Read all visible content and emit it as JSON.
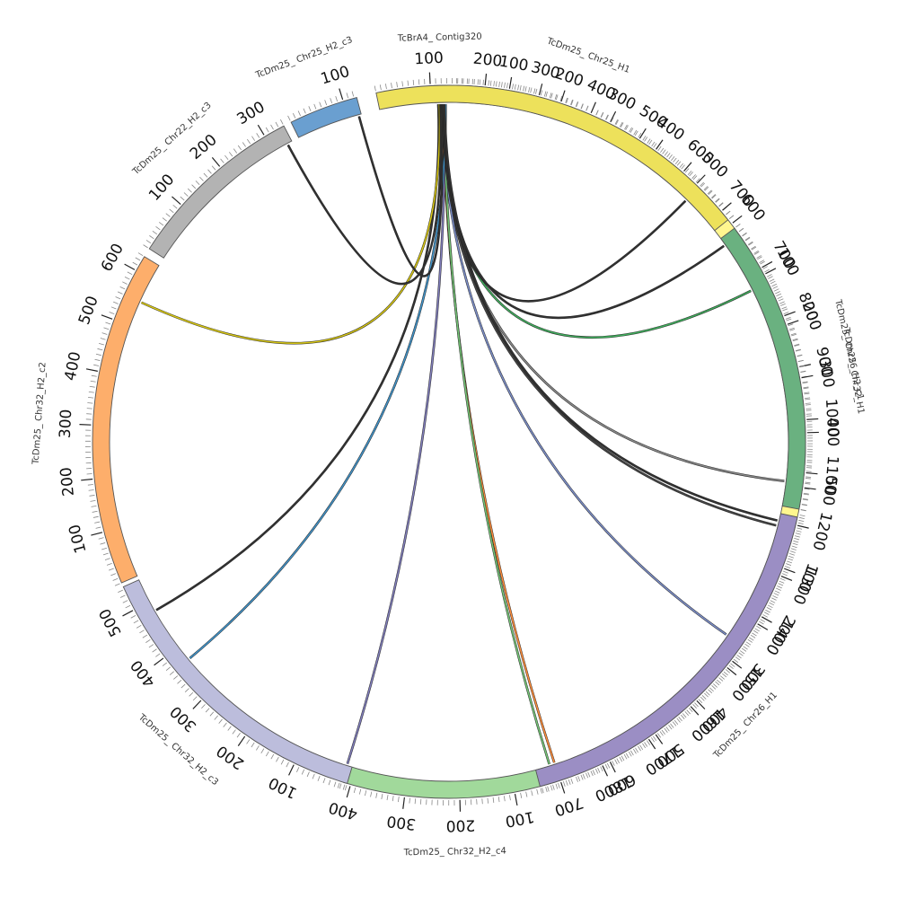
{
  "chart_data": {
    "type": "chord",
    "title": "",
    "segments": [
      {
        "name": "TcBrA4_ Contig320",
        "length": 15,
        "color": "#9ecae1",
        "start_deg": 357.6,
        "end_deg": 359.8
      },
      {
        "name": "TcDm25_ Chr32_H1",
        "length": 1850,
        "color": "#fff68f",
        "start_deg": 1.2,
        "end_deg": 158.9
      },
      {
        "name": "TcDm25_ Chr32_H2_c4",
        "length": 420,
        "color": "#a1d99b",
        "start_deg": 160.5,
        "end_deg": 197.8
      },
      {
        "name": "TcDm25_ Chr32_H2_c3",
        "length": 545,
        "color": "#bcbddc",
        "start_deg": 196.6,
        "end_deg": 246.0
      },
      {
        "name": "TcDm25_ Chr32_H2_c2",
        "length": 630,
        "color": "#fdae6b",
        "start_deg": 246.7,
        "end_deg": 301.3
      },
      {
        "name": "TcDm25_ Chr22_H2_c3",
        "length": 340,
        "color": "#b3b3b3",
        "start_deg": 302.8,
        "end_deg": 332.4
      },
      {
        "name": "TcDm25_ Chr25_H2_c3",
        "length": 125,
        "color": "#6a9fd0",
        "start_deg": 333.7,
        "end_deg": 345.0
      },
      {
        "name": "TcDm25_ Chr25_H1",
        "length": 720,
        "color": "#ede15b",
        "start_deg": 348.2,
        "end_deg": 411.5
      },
      {
        "name": "TcDm25_ Chr26_H2_c1",
        "length": 540,
        "color": "#6ab180",
        "start_deg": 413.2,
        "end_deg": 460.9
      },
      {
        "name": "TcDm25_ Chr26_H1",
        "length": 740,
        "color": "#9b8ec4",
        "start_deg": 462.2,
        "end_deg": 525.2
      }
    ],
    "tick_labels": [
      {
        "segment": 1,
        "labels": [
          "100",
          "200",
          "300",
          "400",
          "500",
          "600",
          "700",
          "800",
          "900",
          "1000",
          "1100",
          "1200",
          "1300",
          "1400",
          "1500",
          "1600",
          "1700",
          "1800"
        ]
      },
      {
        "segment": 2,
        "labels": [
          "100",
          "200",
          "300",
          "400"
        ]
      },
      {
        "segment": 3,
        "labels": [
          "100",
          "200",
          "300",
          "400",
          "500"
        ]
      },
      {
        "segment": 4,
        "labels": [
          "100",
          "200",
          "300",
          "400",
          "500",
          "600"
        ]
      },
      {
        "segment": 5,
        "labels": [
          "100",
          "200",
          "300"
        ]
      },
      {
        "segment": 6,
        "labels": [
          "100"
        ]
      },
      {
        "segment": 7,
        "labels": [
          "100",
          "200",
          "300",
          "400",
          "500",
          "600",
          "700"
        ]
      },
      {
        "segment": 8,
        "labels": [
          "100",
          "200",
          "300",
          "400",
          "500"
        ]
      },
      {
        "segment": 9,
        "labels": [
          "100",
          "200",
          "300",
          "400",
          "500",
          "600",
          "700"
        ]
      }
    ],
    "links": [
      {
        "target": "TcDm25_ Chr32_H1",
        "position": 730,
        "color": "#41ab5d"
      },
      {
        "target": "TcDm25_ Chr32_H1",
        "position": 1120,
        "color": "#888888"
      },
      {
        "target": "TcDm25_ Chr32_H1",
        "position": 1210,
        "color": "#444444"
      },
      {
        "target": "TcDm25_ Chr32_H1",
        "position": 1450,
        "color": "#7b8dc6"
      },
      {
        "target": "TcDm25_ Chr32_H2_c4",
        "position": 15,
        "color": "#fd8d3c"
      },
      {
        "target": "TcDm25_ Chr32_H2_c4",
        "position": 25,
        "color": "#74c476"
      },
      {
        "target": "TcDm25_ Chr32_H2_c3",
        "position": 10,
        "color": "#807dba"
      },
      {
        "target": "TcDm25_ Chr32_H2_c3",
        "position": 370,
        "color": "#4292c6"
      },
      {
        "target": "TcDm25_ Chr32_H2_c3",
        "position": 480,
        "color": "#333333"
      },
      {
        "target": "TcDm25_ Chr32_H2_c2",
        "position": 550,
        "color": "#d4c415"
      },
      {
        "target": "TcDm25_ Chr22_H2_c3",
        "position": 330,
        "color": "#333333"
      },
      {
        "target": "TcDm25_ Chr25_H2_c3",
        "position": 120,
        "color": "#333333"
      },
      {
        "target": "TcDm25_ Chr25_H1",
        "position": 640,
        "color": "#333333"
      },
      {
        "target": "TcDm25_ Chr26_H2_c1",
        "position": 15,
        "color": "#333333"
      },
      {
        "target": "TcDm25_ Chr26_H1",
        "position": 15,
        "color": "#333333"
      }
    ]
  }
}
